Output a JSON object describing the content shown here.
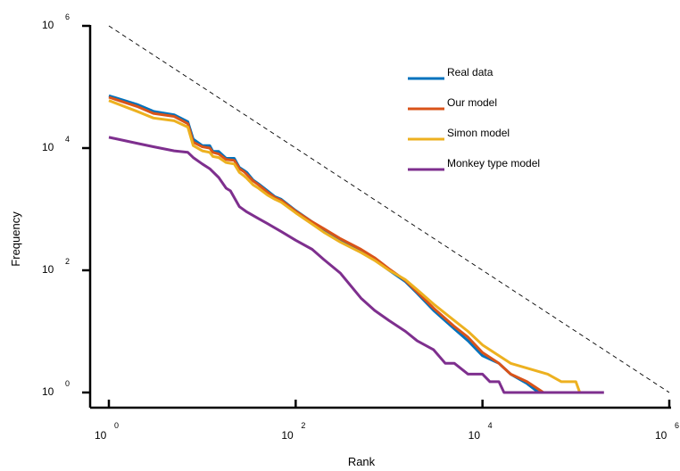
{
  "chart_data": {
    "type": "line",
    "title": "",
    "xlabel": "Rank",
    "ylabel": "Frequency",
    "x_scale": "log",
    "y_scale": "log",
    "xlim": [
      1,
      1000000
    ],
    "ylim": [
      1,
      1000000
    ],
    "x_ticks": [
      {
        "base": "10",
        "exp": "0",
        "value": 1
      },
      {
        "base": "10",
        "exp": "2",
        "value": 100
      },
      {
        "base": "10",
        "exp": "4",
        "value": 10000
      },
      {
        "base": "10",
        "exp": "6",
        "value": 1000000
      }
    ],
    "y_ticks": [
      {
        "base": "10",
        "exp": "0",
        "value": 1
      },
      {
        "base": "10",
        "exp": "2",
        "value": 100
      },
      {
        "base": "10",
        "exp": "4",
        "value": 10000
      },
      {
        "base": "10",
        "exp": "6",
        "value": 1000000
      }
    ],
    "grid": false,
    "legend_position": "top-right",
    "reference_line": {
      "style": "dashed",
      "color": "#000000",
      "points": [
        [
          1,
          1000000
        ],
        [
          1000000,
          1
        ]
      ]
    },
    "series": [
      {
        "name": "Real data",
        "color": "#0072BD",
        "points": [
          [
            1,
            72000
          ],
          [
            2,
            52000
          ],
          [
            3,
            40000
          ],
          [
            5,
            35000
          ],
          [
            7,
            27000
          ],
          [
            8,
            14000
          ],
          [
            10,
            11000
          ],
          [
            12,
            11000
          ],
          [
            13,
            8800
          ],
          [
            15,
            8800
          ],
          [
            18,
            6800
          ],
          [
            22,
            6800
          ],
          [
            25,
            4800
          ],
          [
            28,
            4300
          ],
          [
            30,
            4000
          ],
          [
            35,
            3000
          ],
          [
            40,
            2600
          ],
          [
            50,
            2000
          ],
          [
            60,
            1600
          ],
          [
            70,
            1450
          ],
          [
            100,
            950
          ],
          [
            150,
            620
          ],
          [
            200,
            460
          ],
          [
            300,
            320
          ],
          [
            500,
            210
          ],
          [
            700,
            150
          ],
          [
            1000,
            100
          ],
          [
            1500,
            65
          ],
          [
            2000,
            42
          ],
          [
            3000,
            22
          ],
          [
            5000,
            11
          ],
          [
            7000,
            7
          ],
          [
            10000,
            4
          ],
          [
            15000,
            3
          ],
          [
            20000,
            2
          ],
          [
            30000,
            1.4
          ],
          [
            40000,
            1
          ],
          [
            42000,
            1
          ]
        ]
      },
      {
        "name": "Our model",
        "color": "#D95319",
        "points": [
          [
            1,
            68000
          ],
          [
            2,
            48000
          ],
          [
            3,
            37000
          ],
          [
            5,
            33000
          ],
          [
            7,
            25000
          ],
          [
            8,
            12500
          ],
          [
            10,
            10500
          ],
          [
            12,
            10000
          ],
          [
            13,
            8500
          ],
          [
            15,
            8000
          ],
          [
            18,
            6500
          ],
          [
            22,
            6300
          ],
          [
            25,
            4600
          ],
          [
            28,
            4100
          ],
          [
            30,
            3700
          ],
          [
            35,
            2900
          ],
          [
            40,
            2500
          ],
          [
            50,
            1900
          ],
          [
            60,
            1550
          ],
          [
            70,
            1400
          ],
          [
            100,
            930
          ],
          [
            150,
            620
          ],
          [
            200,
            480
          ],
          [
            300,
            330
          ],
          [
            500,
            220
          ],
          [
            700,
            160
          ],
          [
            1000,
            105
          ],
          [
            1500,
            68
          ],
          [
            2000,
            44
          ],
          [
            3000,
            24
          ],
          [
            5000,
            12
          ],
          [
            7000,
            8
          ],
          [
            10000,
            4.5
          ],
          [
            15000,
            3
          ],
          [
            20000,
            2
          ],
          [
            30000,
            1.5
          ],
          [
            45000,
            1
          ],
          [
            50000,
            1
          ]
        ]
      },
      {
        "name": "Simon model",
        "color": "#EDB120",
        "points": [
          [
            1,
            60000
          ],
          [
            2,
            40000
          ],
          [
            3,
            31000
          ],
          [
            5,
            28000
          ],
          [
            7,
            22000
          ],
          [
            8,
            11000
          ],
          [
            10,
            9000
          ],
          [
            12,
            8500
          ],
          [
            13,
            7300
          ],
          [
            15,
            7000
          ],
          [
            18,
            5800
          ],
          [
            22,
            5500
          ],
          [
            25,
            4000
          ],
          [
            28,
            3500
          ],
          [
            30,
            3200
          ],
          [
            35,
            2500
          ],
          [
            40,
            2200
          ],
          [
            50,
            1700
          ],
          [
            60,
            1450
          ],
          [
            70,
            1300
          ],
          [
            100,
            870
          ],
          [
            150,
            570
          ],
          [
            200,
            420
          ],
          [
            300,
            290
          ],
          [
            500,
            195
          ],
          [
            700,
            145
          ],
          [
            1000,
            100
          ],
          [
            1500,
            70
          ],
          [
            2000,
            48
          ],
          [
            3000,
            28
          ],
          [
            5000,
            15
          ],
          [
            7000,
            10
          ],
          [
            10000,
            6
          ],
          [
            15000,
            4
          ],
          [
            20000,
            3
          ],
          [
            30000,
            2.5
          ],
          [
            50000,
            2
          ],
          [
            70000,
            1.5
          ],
          [
            100000,
            1.5
          ],
          [
            110000,
            1
          ]
        ]
      },
      {
        "name": "Monkey type model",
        "color": "#7E2F8E",
        "points": [
          [
            1,
            15000
          ],
          [
            2,
            12000
          ],
          [
            3,
            10500
          ],
          [
            5,
            9000
          ],
          [
            7,
            8500
          ],
          [
            8,
            7000
          ],
          [
            10,
            5500
          ],
          [
            12,
            4600
          ],
          [
            15,
            3300
          ],
          [
            18,
            2200
          ],
          [
            20,
            2000
          ],
          [
            25,
            1100
          ],
          [
            30,
            900
          ],
          [
            40,
            700
          ],
          [
            50,
            580
          ],
          [
            70,
            430
          ],
          [
            100,
            310
          ],
          [
            150,
            220
          ],
          [
            200,
            150
          ],
          [
            300,
            90
          ],
          [
            500,
            35
          ],
          [
            700,
            22
          ],
          [
            1000,
            15
          ],
          [
            1500,
            10
          ],
          [
            2000,
            7
          ],
          [
            3000,
            5
          ],
          [
            4000,
            3
          ],
          [
            5000,
            3
          ],
          [
            7000,
            2
          ],
          [
            10000,
            2
          ],
          [
            12000,
            1.5
          ],
          [
            15000,
            1.5
          ],
          [
            17000,
            1
          ],
          [
            100000,
            1
          ],
          [
            200000,
            1
          ]
        ]
      }
    ]
  }
}
